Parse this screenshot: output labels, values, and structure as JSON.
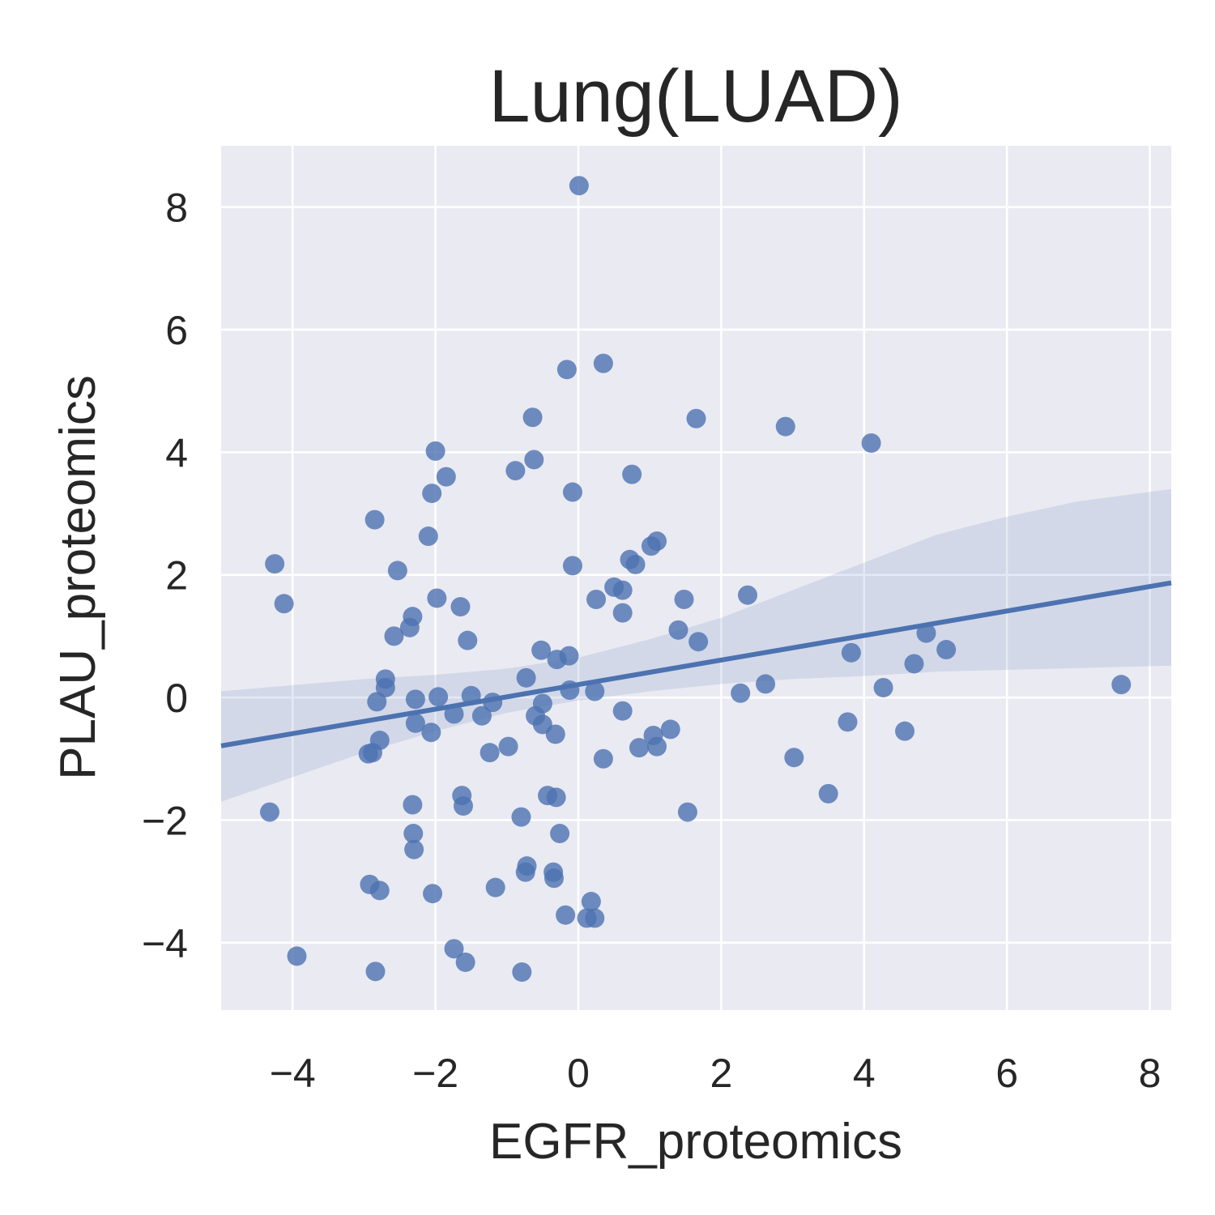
{
  "chart_data": {
    "type": "scatter",
    "title": "Lung(LUAD)",
    "xlabel": "EGFR_proteomics",
    "ylabel": "PLAU_proteomics",
    "xlim": [
      -5.0,
      8.3
    ],
    "ylim": [
      -5.1,
      9.0
    ],
    "xticks": [
      -4,
      -2,
      0,
      2,
      4,
      6,
      8
    ],
    "yticks": [
      -4,
      -2,
      0,
      2,
      4,
      6,
      8
    ],
    "xtick_labels": [
      "−4",
      "−2",
      "0",
      "2",
      "4",
      "6",
      "8"
    ],
    "ytick_labels": [
      "−4",
      "−2",
      "0",
      "2",
      "4",
      "6",
      "8"
    ],
    "grid": true,
    "background_color": "#eaeaf2",
    "point_color": "#4c72b0",
    "line_color": "#4c72b0",
    "regression": {
      "intercept": 0.21,
      "slope": 0.2,
      "ci_band": [
        {
          "x": -5.0,
          "lo": -1.7,
          "hi": 0.1
        },
        {
          "x": -4.0,
          "lo": -1.3,
          "hi": 0.2
        },
        {
          "x": -3.0,
          "lo": -0.9,
          "hi": 0.3
        },
        {
          "x": -2.0,
          "lo": -0.55,
          "hi": 0.37
        },
        {
          "x": -1.0,
          "lo": -0.25,
          "hi": 0.47
        },
        {
          "x": 0.0,
          "lo": -0.05,
          "hi": 0.65
        },
        {
          "x": 1.0,
          "lo": 0.1,
          "hi": 0.95
        },
        {
          "x": 2.0,
          "lo": 0.22,
          "hi": 1.3
        },
        {
          "x": 3.0,
          "lo": 0.3,
          "hi": 1.75
        },
        {
          "x": 4.0,
          "lo": 0.35,
          "hi": 2.2
        },
        {
          "x": 5.0,
          "lo": 0.42,
          "hi": 2.65
        },
        {
          "x": 6.0,
          "lo": 0.45,
          "hi": 2.95
        },
        {
          "x": 7.0,
          "lo": 0.48,
          "hi": 3.2
        },
        {
          "x": 8.3,
          "lo": 0.52,
          "hi": 3.4
        }
      ]
    },
    "points": [
      [
        0.01,
        8.35
      ],
      [
        0.35,
        5.45
      ],
      [
        -0.16,
        5.35
      ],
      [
        -0.64,
        4.57
      ],
      [
        1.65,
        4.55
      ],
      [
        2.9,
        4.42
      ],
      [
        4.1,
        4.15
      ],
      [
        -2.0,
        4.02
      ],
      [
        -0.62,
        3.88
      ],
      [
        -0.88,
        3.7
      ],
      [
        -1.85,
        3.6
      ],
      [
        0.75,
        3.64
      ],
      [
        -2.05,
        3.33
      ],
      [
        -0.08,
        3.35
      ],
      [
        -2.85,
        2.9
      ],
      [
        -2.1,
        2.63
      ],
      [
        1.1,
        2.55
      ],
      [
        1.02,
        2.47
      ],
      [
        0.72,
        2.25
      ],
      [
        0.8,
        2.17
      ],
      [
        -0.08,
        2.15
      ],
      [
        -4.25,
        2.18
      ],
      [
        -2.53,
        2.07
      ],
      [
        0.5,
        1.8
      ],
      [
        0.62,
        1.75
      ],
      [
        -1.98,
        1.62
      ],
      [
        0.25,
        1.6
      ],
      [
        1.48,
        1.6
      ],
      [
        2.37,
        1.67
      ],
      [
        -4.12,
        1.53
      ],
      [
        -1.65,
        1.48
      ],
      [
        0.62,
        1.38
      ],
      [
        -2.32,
        1.32
      ],
      [
        -2.36,
        1.14
      ],
      [
        -2.58,
        1.0
      ],
      [
        1.4,
        1.1
      ],
      [
        4.87,
        1.05
      ],
      [
        -1.55,
        0.93
      ],
      [
        1.68,
        0.91
      ],
      [
        3.82,
        0.73
      ],
      [
        5.15,
        0.78
      ],
      [
        -0.52,
        0.77
      ],
      [
        -0.13,
        0.68
      ],
      [
        -0.3,
        0.62
      ],
      [
        4.7,
        0.55
      ],
      [
        -0.73,
        0.32
      ],
      [
        -2.7,
        0.3
      ],
      [
        -2.7,
        0.16
      ],
      [
        4.27,
        0.16
      ],
      [
        -0.12,
        0.12
      ],
      [
        0.23,
        0.1
      ],
      [
        2.62,
        0.22
      ],
      [
        7.6,
        0.21
      ],
      [
        2.27,
        0.07
      ],
      [
        -2.82,
        -0.07
      ],
      [
        -2.28,
        -0.03
      ],
      [
        -1.96,
        0.01
      ],
      [
        -1.5,
        0.03
      ],
      [
        -1.2,
        -0.08
      ],
      [
        -0.5,
        -0.1
      ],
      [
        -1.35,
        -0.3
      ],
      [
        -1.74,
        -0.27
      ],
      [
        -0.6,
        -0.3
      ],
      [
        0.62,
        -0.22
      ],
      [
        -0.5,
        -0.44
      ],
      [
        -0.32,
        -0.6
      ],
      [
        -2.28,
        -0.42
      ],
      [
        -2.06,
        -0.57
      ],
      [
        1.29,
        -0.52
      ],
      [
        1.05,
        -0.62
      ],
      [
        1.1,
        -0.8
      ],
      [
        0.85,
        -0.82
      ],
      [
        -2.78,
        -0.7
      ],
      [
        -2.88,
        -0.9
      ],
      [
        -2.94,
        -0.92
      ],
      [
        -1.24,
        -0.9
      ],
      [
        -0.98,
        -0.8
      ],
      [
        0.35,
        -1.0
      ],
      [
        3.02,
        -0.98
      ],
      [
        4.57,
        -0.55
      ],
      [
        3.77,
        -0.4
      ],
      [
        -1.63,
        -1.6
      ],
      [
        -0.43,
        -1.6
      ],
      [
        -0.31,
        -1.63
      ],
      [
        3.5,
        -1.57
      ],
      [
        -4.32,
        -1.87
      ],
      [
        -2.32,
        -1.75
      ],
      [
        -1.61,
        -1.77
      ],
      [
        -0.8,
        -1.95
      ],
      [
        1.53,
        -1.87
      ],
      [
        -2.31,
        -2.22
      ],
      [
        -0.26,
        -2.22
      ],
      [
        -2.3,
        -2.48
      ],
      [
        -0.72,
        -2.75
      ],
      [
        -0.74,
        -2.85
      ],
      [
        -0.35,
        -2.85
      ],
      [
        -0.34,
        -2.95
      ],
      [
        -2.92,
        -3.05
      ],
      [
        -2.78,
        -3.15
      ],
      [
        -2.04,
        -3.2
      ],
      [
        -1.16,
        -3.1
      ],
      [
        0.18,
        -3.33
      ],
      [
        -0.18,
        -3.55
      ],
      [
        0.12,
        -3.6
      ],
      [
        0.23,
        -3.6
      ],
      [
        -3.94,
        -4.22
      ],
      [
        -1.74,
        -4.1
      ],
      [
        -1.58,
        -4.32
      ],
      [
        -2.84,
        -4.47
      ],
      [
        -0.79,
        -4.48
      ]
    ]
  }
}
